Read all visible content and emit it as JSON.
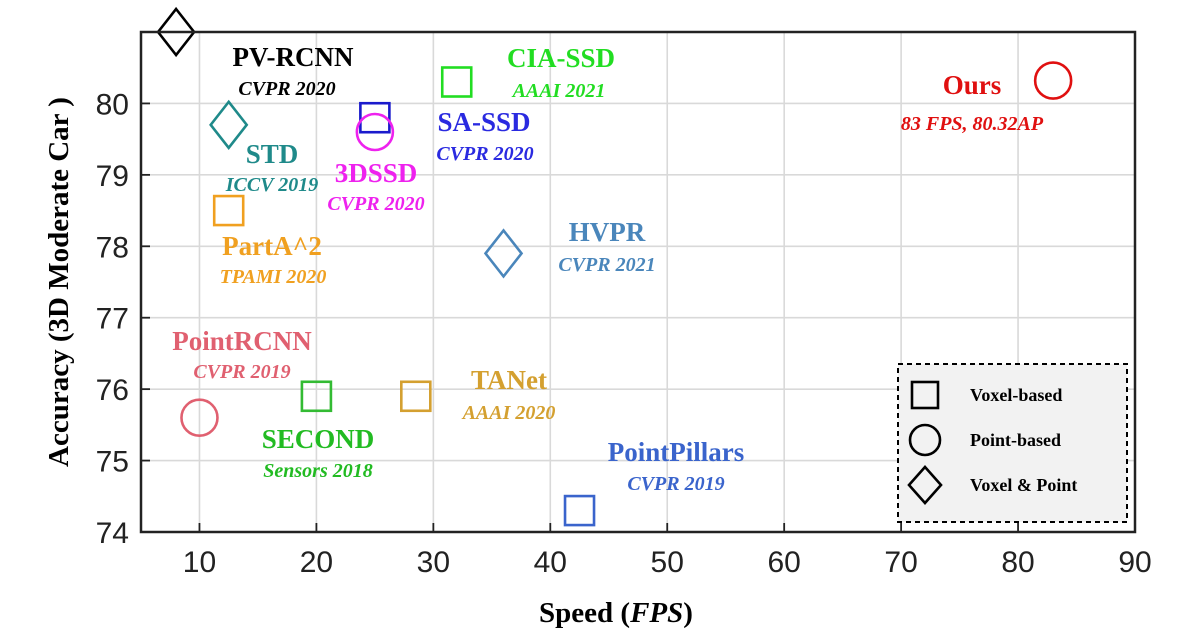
{
  "chart_data": {
    "type": "scatter",
    "xlabel": {
      "prefix": "Speed (",
      "italic": "FPS",
      "suffix": ")"
    },
    "ylabel": "Accuracy (3D Moderate Car )",
    "xlim": [
      5,
      90
    ],
    "ylim": [
      74,
      81
    ],
    "xticks": [
      10,
      20,
      30,
      40,
      50,
      60,
      70,
      80,
      90
    ],
    "yticks": [
      74,
      75,
      76,
      77,
      78,
      79,
      80
    ],
    "grid": true,
    "legend_position": "bottom-right",
    "legend": [
      {
        "marker": "square",
        "label": "Voxel-based"
      },
      {
        "marker": "circle",
        "label": "Point-based"
      },
      {
        "marker": "diamond",
        "label": "Voxel & Point"
      }
    ],
    "points": [
      {
        "name": "PV-RCNN",
        "venue": "CVPR 2020",
        "x": 8,
        "y": 81.0,
        "marker": "diamond",
        "color": "#000000",
        "name_color": "#000000",
        "venue_color": "#000000"
      },
      {
        "name": "CIA-SSD",
        "venue": "AAAI 2021",
        "x": 32,
        "y": 80.3,
        "marker": "square",
        "color": "#22dd22",
        "name_color": "#22dd22",
        "venue_color": "#22dd22"
      },
      {
        "name": "SA-SSD",
        "venue": "CVPR 2020",
        "x": 25,
        "y": 79.8,
        "marker": "square",
        "color": "#1a1acc",
        "name_color": "#2a2ae0",
        "venue_color": "#2a2ae0"
      },
      {
        "name": "3DSSD",
        "venue": "CVPR 2020",
        "x": 25,
        "y": 79.6,
        "marker": "circle",
        "color": "#ee22ee",
        "name_color": "#ee22ee",
        "venue_color": "#ee22ee"
      },
      {
        "name": "STD",
        "venue": "ICCV 2019",
        "x": 12.5,
        "y": 79.7,
        "marker": "diamond",
        "color": "#1f8a8a",
        "name_color": "#1f8a8a",
        "venue_color": "#1f8a8a"
      },
      {
        "name": "PartA^2",
        "venue": "TPAMI 2020",
        "x": 12.5,
        "y": 78.5,
        "marker": "square",
        "color": "#f0a020",
        "name_color": "#f0a020",
        "venue_color": "#f0a020"
      },
      {
        "name": "HVPR",
        "venue": "CVPR 2021",
        "x": 36,
        "y": 77.9,
        "marker": "diamond",
        "color": "#4a86bb",
        "name_color": "#4a86bb",
        "venue_color": "#4a86bb"
      },
      {
        "name": "PointRCNN",
        "venue": "CVPR 2019",
        "x": 10,
        "y": 75.6,
        "marker": "circle",
        "color": "#e06070",
        "name_color": "#e06070",
        "venue_color": "#e06070"
      },
      {
        "name": "SECOND",
        "venue": "Sensors 2018",
        "x": 20,
        "y": 75.9,
        "marker": "square",
        "color": "#33bb33",
        "name_color": "#22bb22",
        "venue_color": "#22bb22"
      },
      {
        "name": "TANet",
        "venue": "AAAI 2020",
        "x": 28.5,
        "y": 75.9,
        "marker": "square",
        "color": "#d4a030",
        "name_color": "#d4a030",
        "venue_color": "#d4a030"
      },
      {
        "name": "PointPillars",
        "venue": "CVPR 2019",
        "x": 42.5,
        "y": 74.3,
        "marker": "square",
        "color": "#3a64cc",
        "name_color": "#3a64cc",
        "venue_color": "#3a64cc"
      },
      {
        "name": "Ours",
        "venue": "83 FPS, 80.32AP",
        "x": 83,
        "y": 80.32,
        "marker": "circle",
        "color": "#e01010",
        "name_color": "#e01010",
        "venue_color": "#e01010"
      }
    ]
  }
}
